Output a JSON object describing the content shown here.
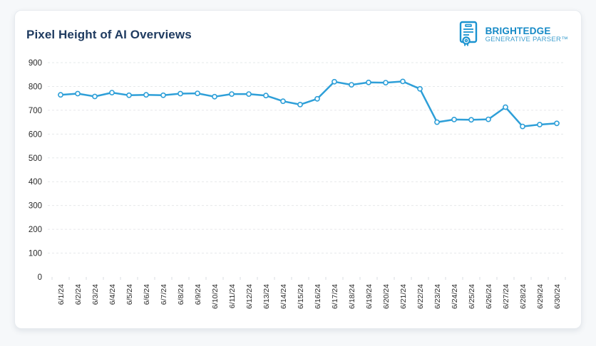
{
  "card": {
    "title": "Pixel Height of AI Overviews",
    "logo": {
      "brand": "BRIGHTEDGE",
      "subtitle": "GENERATIVE PARSER™",
      "brand_color": "#1489c6",
      "subtitle_color": "#41a0cf",
      "icon_color": "#1b93d0"
    }
  },
  "chart_data": {
    "type": "line",
    "title": "Pixel Height of AI Overviews",
    "categories": [
      "6/1/24",
      "6/2/24",
      "6/3/24",
      "6/4/24",
      "6/5/24",
      "6/6/24",
      "6/7/24",
      "6/8/24",
      "6/9/24",
      "6/10/24",
      "6/11/24",
      "6/12/24",
      "6/13/24",
      "6/14/24",
      "6/15/24",
      "6/16/24",
      "6/17/24",
      "6/18/24",
      "6/19/24",
      "6/20/24",
      "6/21/24",
      "6/22/24",
      "6/23/24",
      "6/24/24",
      "6/25/24",
      "6/26/24",
      "6/27/24",
      "6/28/24",
      "6/29/24",
      "6/30/24"
    ],
    "values": [
      765,
      770,
      758,
      774,
      763,
      765,
      763,
      770,
      771,
      757,
      768,
      768,
      762,
      738,
      724,
      748,
      820,
      807,
      817,
      816,
      821,
      790,
      650,
      661,
      660,
      662,
      713,
      632,
      640,
      645
    ],
    "xlabel": "",
    "ylabel": "",
    "ylim": [
      0,
      900
    ],
    "ytick_interval": 100,
    "grid": "horizontal-dashed",
    "legend": "none",
    "line_color": "#2e9fd8",
    "marker_fill": "#ffffff",
    "grid_color": "#e6e8ea",
    "tick_color": "#d8dde2",
    "label_color": "#2b2b2b"
  }
}
